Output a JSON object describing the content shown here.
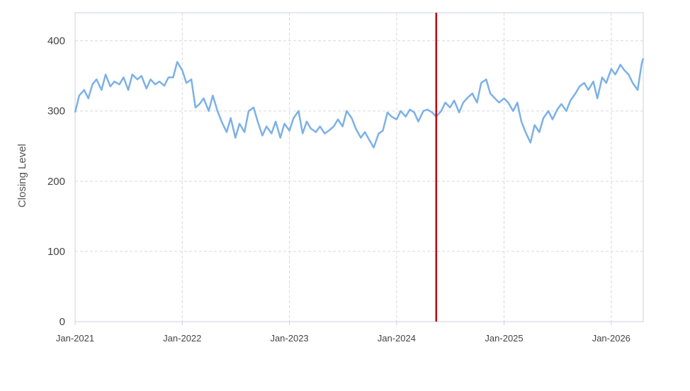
{
  "chart_data": {
    "type": "line",
    "title": "",
    "xlabel": "",
    "ylabel": "Closing Level",
    "xlim": [
      "2021-01-01",
      "2026-04-20"
    ],
    "ylim": [
      0,
      440
    ],
    "x_ticks": [
      "2021-01-01",
      "2022-01-01",
      "2023-01-01",
      "2024-01-01",
      "2025-01-01",
      "2026-01-01"
    ],
    "x_tick_labels": [
      "Jan-2021",
      "Jan-2022",
      "Jan-2023",
      "Jan-2024",
      "Jan-2025",
      "Jan-2026"
    ],
    "y_ticks": [
      0,
      100,
      200,
      300,
      400
    ],
    "grid": true,
    "grid_style": "dashed",
    "series": [
      {
        "color": "#7cb1e6",
        "x": [
          "2021-01-01",
          "2021-01-15",
          "2021-02-01",
          "2021-02-15",
          "2021-03-01",
          "2021-03-15",
          "2021-04-01",
          "2021-04-15",
          "2021-05-01",
          "2021-05-15",
          "2021-06-01",
          "2021-06-15",
          "2021-07-01",
          "2021-07-15",
          "2021-08-01",
          "2021-08-15",
          "2021-09-01",
          "2021-09-15",
          "2021-10-01",
          "2021-10-15",
          "2021-11-01",
          "2021-11-15",
          "2021-12-01",
          "2021-12-15",
          "2022-01-01",
          "2022-01-15",
          "2022-02-01",
          "2022-02-15",
          "2022-03-01",
          "2022-03-15",
          "2022-04-01",
          "2022-04-15",
          "2022-05-01",
          "2022-05-15",
          "2022-06-01",
          "2022-06-15",
          "2022-07-01",
          "2022-07-15",
          "2022-08-01",
          "2022-08-15",
          "2022-09-01",
          "2022-09-15",
          "2022-10-01",
          "2022-10-15",
          "2022-11-01",
          "2022-11-15",
          "2022-12-01",
          "2022-12-15",
          "2023-01-01",
          "2023-01-15",
          "2023-02-01",
          "2023-02-15",
          "2023-03-01",
          "2023-03-15",
          "2023-04-01",
          "2023-04-15",
          "2023-05-01",
          "2023-05-15",
          "2023-06-01",
          "2023-06-15",
          "2023-07-01",
          "2023-07-15",
          "2023-08-01",
          "2023-08-15",
          "2023-09-01",
          "2023-09-15",
          "2023-10-01",
          "2023-10-15",
          "2023-11-01",
          "2023-11-15",
          "2023-12-01",
          "2023-12-15",
          "2024-01-01",
          "2024-01-15",
          "2024-02-01",
          "2024-02-15",
          "2024-03-01",
          "2024-03-15",
          "2024-04-01",
          "2024-04-15",
          "2024-05-01",
          "2024-05-15",
          "2024-06-01",
          "2024-06-15",
          "2024-07-01",
          "2024-07-15",
          "2024-08-01",
          "2024-08-15",
          "2024-09-01",
          "2024-09-15",
          "2024-10-01",
          "2024-10-15",
          "2024-11-01",
          "2024-11-15",
          "2024-12-01",
          "2024-12-15",
          "2025-01-01",
          "2025-01-15",
          "2025-02-01",
          "2025-02-15",
          "2025-03-01",
          "2025-03-15",
          "2025-04-01",
          "2025-04-15",
          "2025-05-01",
          "2025-05-15",
          "2025-06-01",
          "2025-06-15",
          "2025-07-01",
          "2025-07-15",
          "2025-08-01",
          "2025-08-15",
          "2025-09-01",
          "2025-09-15",
          "2025-10-01",
          "2025-10-15",
          "2025-11-01",
          "2025-11-15",
          "2025-12-01",
          "2025-12-15",
          "2026-01-01",
          "2026-01-15",
          "2026-02-01",
          "2026-02-15",
          "2026-03-01",
          "2026-03-15",
          "2026-04-01",
          "2026-04-15",
          "2026-04-20"
        ],
        "y": [
          298,
          322,
          330,
          318,
          338,
          345,
          330,
          352,
          335,
          342,
          338,
          348,
          330,
          352,
          345,
          350,
          332,
          345,
          338,
          342,
          336,
          348,
          348,
          370,
          358,
          340,
          345,
          305,
          310,
          318,
          300,
          322,
          300,
          285,
          270,
          290,
          262,
          282,
          270,
          300,
          305,
          285,
          265,
          278,
          268,
          285,
          262,
          282,
          272,
          290,
          300,
          268,
          285,
          275,
          270,
          278,
          268,
          272,
          278,
          288,
          278,
          300,
          290,
          275,
          262,
          270,
          258,
          248,
          268,
          272,
          298,
          292,
          288,
          300,
          292,
          302,
          298,
          285,
          300,
          302,
          298,
          292,
          300,
          312,
          305,
          315,
          298,
          312,
          320,
          325,
          312,
          340,
          345,
          325,
          318,
          312,
          318,
          312,
          300,
          312,
          285,
          270,
          255,
          280,
          270,
          290,
          300,
          288,
          302,
          310,
          300,
          315,
          325,
          335,
          340,
          330,
          342,
          318,
          348,
          340,
          360,
          352,
          366,
          358,
          352,
          340,
          330,
          368,
          375
        ]
      }
    ],
    "annotations": [
      {
        "type": "vertical_line",
        "x": "2024-05-15",
        "color": "#c00000"
      }
    ]
  }
}
